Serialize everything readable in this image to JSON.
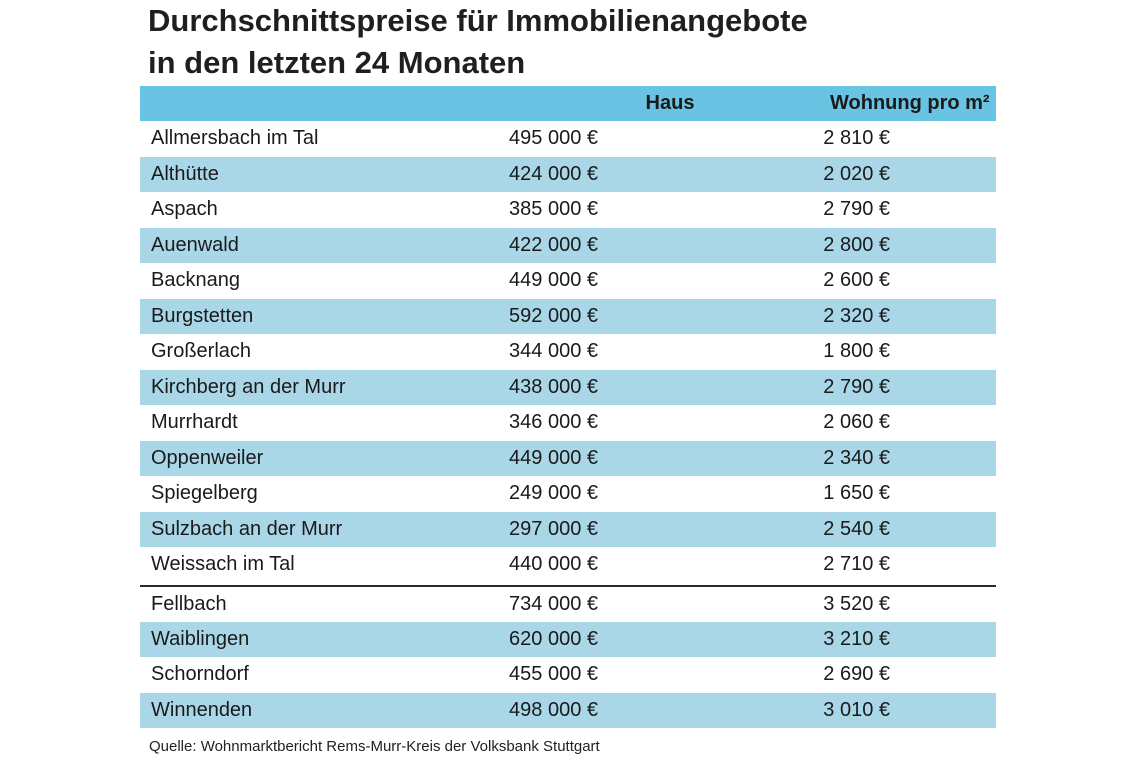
{
  "title_line1": "Durchschnittspreise für Immobilienangebote",
  "title_line2": "in den letzten 24 Monaten",
  "columns": {
    "name": "",
    "haus": "Haus",
    "wohnung": "Wohnung pro m²"
  },
  "group1": [
    {
      "name": "Allmersbach im Tal",
      "haus": "495 000 €",
      "wohnung": "2 810 €"
    },
    {
      "name": "Althütte",
      "haus": "424 000 €",
      "wohnung": "2 020 €"
    },
    {
      "name": "Aspach",
      "haus": "385 000 €",
      "wohnung": "2 790 €"
    },
    {
      "name": "Auenwald",
      "haus": "422 000 €",
      "wohnung": "2 800 €"
    },
    {
      "name": "Backnang",
      "haus": "449 000 €",
      "wohnung": "2 600 €"
    },
    {
      "name": "Burgstetten",
      "haus": "592 000 €",
      "wohnung": "2 320 €"
    },
    {
      "name": "Großerlach",
      "haus": "344 000 €",
      "wohnung": "1 800 €"
    },
    {
      "name": "Kirchberg an der Murr",
      "haus": "438 000 €",
      "wohnung": "2 790 €"
    },
    {
      "name": "Murrhardt",
      "haus": "346 000 €",
      "wohnung": "2 060 €"
    },
    {
      "name": "Oppenweiler",
      "haus": "449 000 €",
      "wohnung": "2 340 €"
    },
    {
      "name": "Spiegelberg",
      "haus": "249 000 €",
      "wohnung": "1 650 €"
    },
    {
      "name": "Sulzbach an der Murr",
      "haus": "297 000 €",
      "wohnung": "2 540 €"
    },
    {
      "name": "Weissach im Tal",
      "haus": "440 000 €",
      "wohnung": "2 710 €"
    }
  ],
  "group2": [
    {
      "name": "Fellbach",
      "haus": "734 000 €",
      "wohnung": "3 520 €"
    },
    {
      "name": "Waiblingen",
      "haus": "620 000 €",
      "wohnung": "3 210 €"
    },
    {
      "name": "Schorndorf",
      "haus": "455 000 €",
      "wohnung": "2 690 €"
    },
    {
      "name": "Winnenden",
      "haus": "498 000 €",
      "wohnung": "3 010 €"
    }
  ],
  "source": "Quelle: Wohnmarktbericht Rems-Murr-Kreis der Volksbank Stuttgart",
  "colors": {
    "header": "#69c3e2",
    "stripe": "#aad7e8",
    "separator": "#2a2a2a"
  }
}
